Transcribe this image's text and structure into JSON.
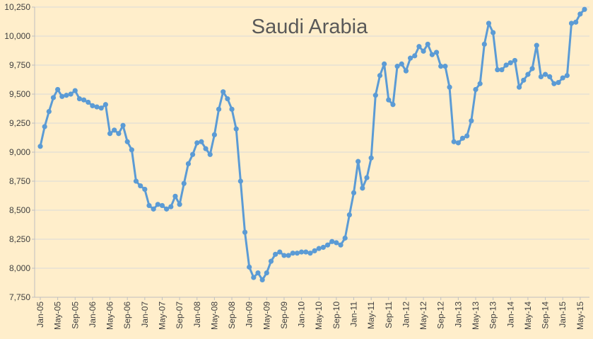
{
  "chart_data": {
    "type": "line",
    "title": "Saudi Arabia",
    "xlabel": "",
    "ylabel": "",
    "ylim": [
      7750,
      10250
    ],
    "yticks": [
      7750,
      8000,
      8250,
      8500,
      8750,
      9000,
      9250,
      9500,
      9750,
      10000,
      10250
    ],
    "ytick_labels": [
      "7,750",
      "8,000",
      "8,250",
      "8,500",
      "8,750",
      "9,000",
      "9,250",
      "9,500",
      "9,750",
      "10,000",
      "10,250"
    ],
    "xtick_labels": [
      "Jan-05",
      "May-05",
      "Sep-05",
      "Jan-06",
      "May-06",
      "Sep-06",
      "Jan-07",
      "May-07",
      "Sep-07",
      "Jan-08",
      "May-08",
      "Sep-08",
      "Jan-09",
      "May-09",
      "Sep-09",
      "Jan-10",
      "May-10",
      "Sep-10",
      "Jan-11",
      "May-11",
      "Sep-11",
      "Jan-12",
      "May-12",
      "Sep-12",
      "Jan-13",
      "May-13",
      "Sep-13",
      "Jan-14",
      "May-14",
      "Sep-14",
      "Jan-15",
      "May-15"
    ],
    "grid": true,
    "legend": "none",
    "line_color": "#5b9bd5",
    "background_color": "#ffeecb",
    "series": [
      {
        "x_start": "Jan-05",
        "x_end": "Jun-15",
        "values": [
          9050,
          9220,
          9350,
          9470,
          9540,
          9480,
          9490,
          9500,
          9530,
          9460,
          9450,
          9430,
          9400,
          9390,
          9380,
          9410,
          9160,
          9190,
          9160,
          9230,
          9090,
          9020,
          8750,
          8710,
          8680,
          8540,
          8510,
          8550,
          8540,
          8510,
          8530,
          8620,
          8550,
          8730,
          8900,
          8980,
          9080,
          9090,
          9030,
          8980,
          9150,
          9370,
          9520,
          9460,
          9370,
          9200,
          8750,
          8310,
          8010,
          7920,
          7960,
          7900,
          7960,
          8060,
          8120,
          8140,
          8110,
          8110,
          8130,
          8130,
          8140,
          8140,
          8130,
          8150,
          8170,
          8180,
          8200,
          8230,
          8220,
          8200,
          8260,
          8460,
          8650,
          8920,
          8690,
          8780,
          8950,
          9490,
          9660,
          9760,
          9450,
          9410,
          9740,
          9760,
          9700,
          9810,
          9830,
          9910,
          9870,
          9930,
          9840,
          9860,
          9740,
          9740,
          9560,
          9090,
          9080,
          9120,
          9140,
          9270,
          9540,
          9590,
          9930,
          10110,
          10030,
          9710,
          9710,
          9750,
          9770,
          9790,
          9560,
          9620,
          9670,
          9720,
          9920,
          9650,
          9670,
          9650,
          9590,
          9600,
          9640,
          9660,
          10110,
          10120,
          10190,
          10230
        ]
      }
    ]
  }
}
